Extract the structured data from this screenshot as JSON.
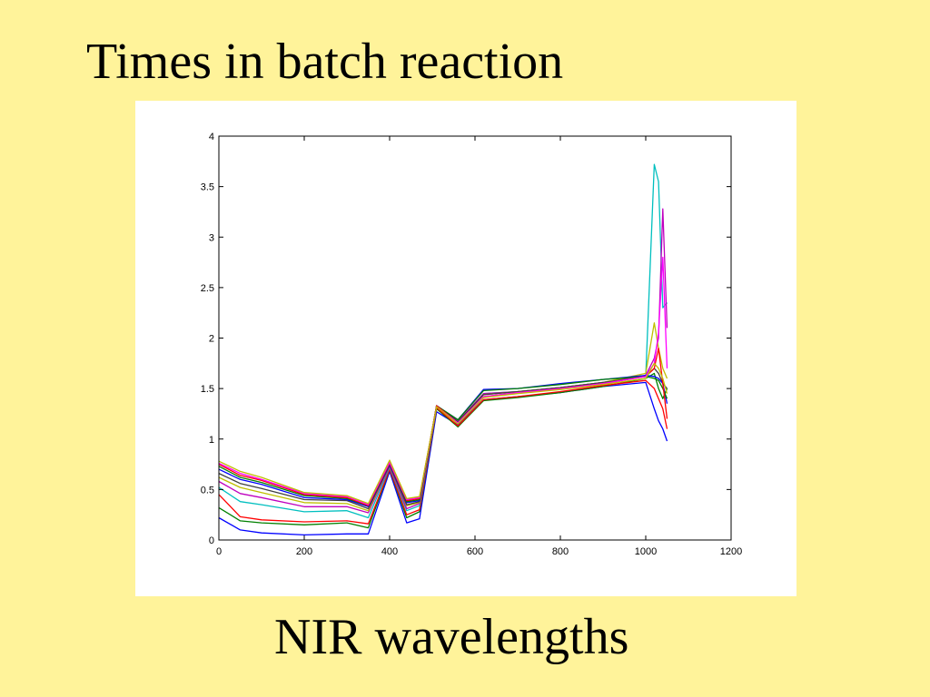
{
  "slide": {
    "title": "Times in batch reaction",
    "caption": "NIR wavelengths"
  },
  "chart_data": {
    "type": "line",
    "title": "",
    "xlabel": "",
    "ylabel": "",
    "xlim": [
      0,
      1200
    ],
    "ylim": [
      0,
      4
    ],
    "x_ticks": [
      0,
      200,
      400,
      600,
      800,
      1000,
      1200
    ],
    "y_ticks": [
      0,
      0.5,
      1,
      1.5,
      2,
      2.5,
      3,
      3.5,
      4
    ],
    "grid": false,
    "legend": "none",
    "x": [
      0,
      50,
      100,
      200,
      300,
      350,
      400,
      440,
      470,
      510,
      560,
      620,
      700,
      800,
      900,
      1000,
      1020,
      1030,
      1040,
      1050
    ],
    "series": [
      {
        "color": "#0000ff",
        "values": [
          0.22,
          0.1,
          0.07,
          0.05,
          0.06,
          0.06,
          0.68,
          0.17,
          0.21,
          1.27,
          1.14,
          1.39,
          1.42,
          1.46,
          1.52,
          1.56,
          1.3,
          1.18,
          1.1,
          0.98
        ]
      },
      {
        "color": "#008000",
        "values": [
          0.32,
          0.19,
          0.17,
          0.15,
          0.17,
          0.12,
          0.7,
          0.22,
          0.28,
          1.3,
          1.12,
          1.38,
          1.41,
          1.46,
          1.52,
          1.6,
          1.65,
          1.5,
          1.4,
          1.5
        ]
      },
      {
        "color": "#ff0000",
        "values": [
          0.45,
          0.23,
          0.2,
          0.18,
          0.19,
          0.16,
          0.7,
          0.25,
          0.3,
          1.31,
          1.13,
          1.39,
          1.42,
          1.47,
          1.53,
          1.58,
          1.5,
          1.4,
          1.3,
          1.1
        ]
      },
      {
        "color": "#00bfbf",
        "values": [
          0.52,
          0.38,
          0.35,
          0.28,
          0.29,
          0.22,
          0.72,
          0.29,
          0.34,
          1.32,
          1.18,
          1.45,
          1.47,
          1.51,
          1.56,
          1.62,
          3.72,
          3.55,
          2.3,
          2.35
        ]
      },
      {
        "color": "#bf00bf",
        "values": [
          0.58,
          0.46,
          0.42,
          0.33,
          0.33,
          0.27,
          0.73,
          0.31,
          0.36,
          1.32,
          1.18,
          1.45,
          1.47,
          1.51,
          1.56,
          1.63,
          1.8,
          2.0,
          3.28,
          2.1
        ]
      },
      {
        "color": "#bfbf00",
        "values": [
          0.62,
          0.52,
          0.47,
          0.37,
          0.36,
          0.29,
          0.74,
          0.34,
          0.37,
          1.32,
          1.17,
          1.44,
          1.47,
          1.51,
          1.56,
          1.65,
          2.15,
          1.9,
          1.7,
          1.6
        ]
      },
      {
        "color": "#404040",
        "values": [
          0.66,
          0.56,
          0.51,
          0.4,
          0.39,
          0.31,
          0.74,
          0.35,
          0.38,
          1.33,
          1.17,
          1.44,
          1.47,
          1.51,
          1.56,
          1.62,
          1.7,
          1.65,
          1.55,
          1.5
        ]
      },
      {
        "color": "#0000ff",
        "values": [
          0.7,
          0.6,
          0.55,
          0.42,
          0.4,
          0.33,
          0.75,
          0.37,
          0.39,
          1.33,
          1.19,
          1.49,
          1.5,
          1.55,
          1.59,
          1.63,
          1.62,
          1.6,
          1.55,
          1.35
        ]
      },
      {
        "color": "#008000",
        "values": [
          0.73,
          0.62,
          0.57,
          0.44,
          0.41,
          0.34,
          0.76,
          0.38,
          0.4,
          1.33,
          1.19,
          1.48,
          1.5,
          1.54,
          1.59,
          1.62,
          1.6,
          1.58,
          1.5,
          1.4
        ]
      },
      {
        "color": "#ff0000",
        "values": [
          0.75,
          0.64,
          0.59,
          0.45,
          0.42,
          0.34,
          0.76,
          0.39,
          0.41,
          1.33,
          1.16,
          1.42,
          1.46,
          1.5,
          1.55,
          1.62,
          1.7,
          1.9,
          1.55,
          1.2
        ]
      },
      {
        "color": "#ff00ff",
        "values": [
          0.76,
          0.66,
          0.6,
          0.46,
          0.43,
          0.35,
          0.77,
          0.4,
          0.42,
          1.32,
          1.16,
          1.42,
          1.46,
          1.5,
          1.55,
          1.62,
          1.75,
          2.05,
          2.8,
          1.7
        ]
      },
      {
        "color": "#bfbf00",
        "values": [
          0.78,
          0.68,
          0.62,
          0.47,
          0.44,
          0.36,
          0.79,
          0.41,
          0.43,
          1.32,
          1.15,
          1.41,
          1.45,
          1.49,
          1.54,
          1.6,
          1.75,
          1.7,
          1.6,
          1.45
        ]
      }
    ]
  }
}
